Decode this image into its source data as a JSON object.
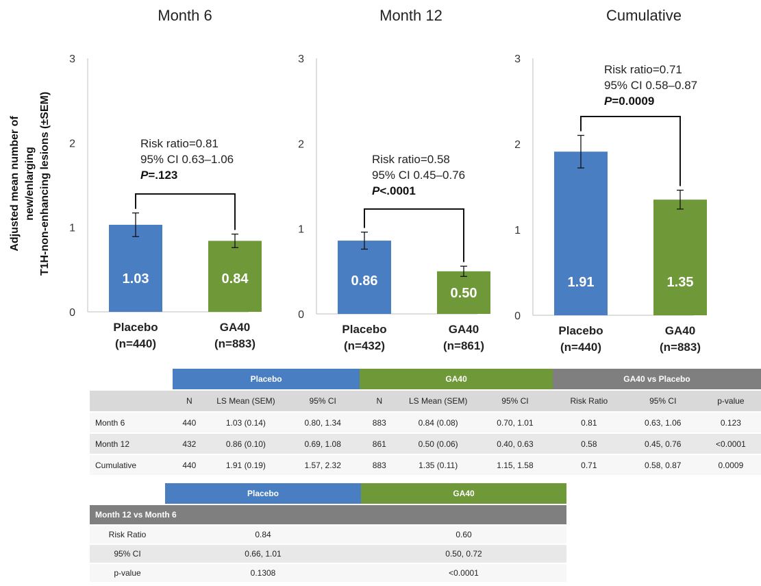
{
  "y_axis_label": [
    "Adjusted mean number of",
    "new/enlarging",
    "T1H-non-enhancing lesions (±SEM)"
  ],
  "colors": {
    "placebo": "#4a7ec2",
    "ga40": "#6f9838",
    "gray": "#7f7f7f"
  },
  "chart_data": [
    {
      "type": "bar",
      "title": "Month 6",
      "categories": [
        "Placebo",
        "GA40"
      ],
      "category_n": [
        "(n=440)",
        "(n=883)"
      ],
      "values": [
        1.03,
        0.84
      ],
      "value_labels": [
        "1.03",
        "0.84"
      ],
      "sem": [
        0.14,
        0.08
      ],
      "ylim": [
        0,
        3
      ],
      "yticks": [
        "0",
        "1",
        "2",
        "3"
      ],
      "annotation": [
        "Risk ratio=0.81",
        "95% CI 0.63–1.06"
      ],
      "annotation_p_label": "P",
      "annotation_p_value": "=.123"
    },
    {
      "type": "bar",
      "title": "Month 12",
      "categories": [
        "Placebo",
        "GA40"
      ],
      "category_n": [
        "(n=432)",
        "(n=861)"
      ],
      "values": [
        0.86,
        0.5
      ],
      "value_labels": [
        "0.86",
        "0.50"
      ],
      "sem": [
        0.1,
        0.06
      ],
      "ylim": [
        0,
        3
      ],
      "yticks": [
        "0",
        "1",
        "2",
        "3"
      ],
      "annotation": [
        "Risk ratio=0.58",
        "95% CI 0.45–0.76"
      ],
      "annotation_p_label": "P",
      "annotation_p_value": "<.0001"
    },
    {
      "type": "bar",
      "title": "Cumulative",
      "categories": [
        "Placebo",
        "GA40"
      ],
      "category_n": [
        "(n=440)",
        "(n=883)"
      ],
      "values": [
        1.91,
        1.35
      ],
      "value_labels": [
        "1.91",
        "1.35"
      ],
      "sem": [
        0.19,
        0.11
      ],
      "ylim": [
        0,
        3
      ],
      "yticks": [
        "0",
        "1",
        "2",
        "3"
      ],
      "annotation": [
        "Risk ratio=0.71",
        "95% CI 0.58–0.87"
      ],
      "annotation_p_label": "P",
      "annotation_p_value": "=0.0009"
    }
  ],
  "table1": {
    "groups": [
      "Placebo",
      "GA40",
      "GA40 vs Placebo"
    ],
    "columns": [
      "N",
      "LS Mean (SEM)",
      "95% CI",
      "N",
      "LS Mean (SEM)",
      "95% CI",
      "Risk Ratio",
      "95% CI",
      "p-value"
    ],
    "rows": [
      [
        "Month 6",
        "440",
        "1.03 (0.14)",
        "0.80, 1.34",
        "883",
        "0.84 (0.08)",
        "0.70, 1.01",
        "0.81",
        "0.63, 1.06",
        "0.123"
      ],
      [
        "Month 12",
        "432",
        "0.86 (0.10)",
        "0.69, 1.08",
        "861",
        "0.50 (0.06)",
        "0.40, 0.63",
        "0.58",
        "0.45, 0.76",
        "<0.0001"
      ],
      [
        "Cumulative",
        "440",
        "1.91 (0.19)",
        "1.57, 2.32",
        "883",
        "1.35 (0.11)",
        "1.15, 1.58",
        "0.71",
        "0.58, 0.87",
        "0.0009"
      ]
    ]
  },
  "table2": {
    "groups": [
      "Placebo",
      "GA40"
    ],
    "section_title": "Month 12 vs Month 6",
    "rows": [
      [
        "Risk Ratio",
        "0.84",
        "0.60"
      ],
      [
        "95% CI",
        "0.66, 1.01",
        "0.50, 0.72"
      ],
      [
        "p-value",
        "0.1308",
        "<0.0001"
      ]
    ]
  }
}
